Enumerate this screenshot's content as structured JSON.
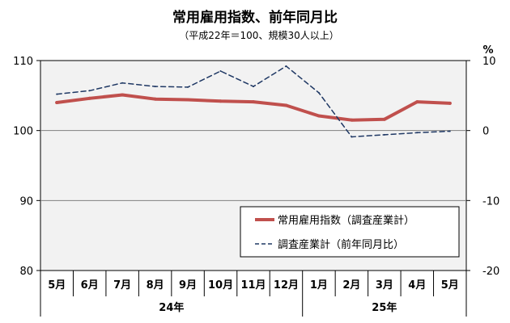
{
  "chart_data": {
    "type": "line",
    "title": "常用雇用指数、前年同月比",
    "subtitle": "（平成22年＝100、規模30人以上）",
    "categories": [
      "5月",
      "6月",
      "7月",
      "8月",
      "9月",
      "10月",
      "11月",
      "12月",
      "1月",
      "2月",
      "3月",
      "4月",
      "5月"
    ],
    "year_groups": [
      {
        "label": "24年",
        "categories": [
          "5月",
          "6月",
          "7月",
          "8月",
          "9月",
          "10月",
          "11月",
          "12月"
        ]
      },
      {
        "label": "25年",
        "categories": [
          "1月",
          "2月",
          "3月",
          "4月",
          "5月"
        ]
      }
    ],
    "left_axis": {
      "ylim": [
        80,
        110
      ],
      "ticks": [
        "80",
        "90",
        "100",
        "110"
      ]
    },
    "right_axis": {
      "unit": "%",
      "ylim": [
        -20,
        10
      ],
      "ticks": [
        "-20",
        "-10",
        "0",
        "10"
      ]
    },
    "series": [
      {
        "name": "常用雇用指数（調査産業計）",
        "axis": "left",
        "style": "solid",
        "color": "#c0504d",
        "values": [
          104.0,
          104.6,
          105.1,
          104.5,
          104.4,
          104.2,
          104.1,
          103.6,
          102.1,
          101.5,
          101.6,
          104.1,
          103.9
        ]
      },
      {
        "name": "調査産業計（前年同月比）",
        "axis": "right",
        "style": "dashed",
        "color": "#1f3864",
        "values": [
          5.2,
          5.7,
          6.8,
          6.3,
          6.2,
          8.5,
          6.3,
          9.2,
          5.4,
          -0.9,
          -0.6,
          -0.3,
          -0.1
        ]
      }
    ],
    "grid": "horizontal",
    "legend": "bottom-right"
  },
  "colors": {
    "plot_bg": "#f2f2f2",
    "gridline": "#808080",
    "axis": "#000000"
  }
}
